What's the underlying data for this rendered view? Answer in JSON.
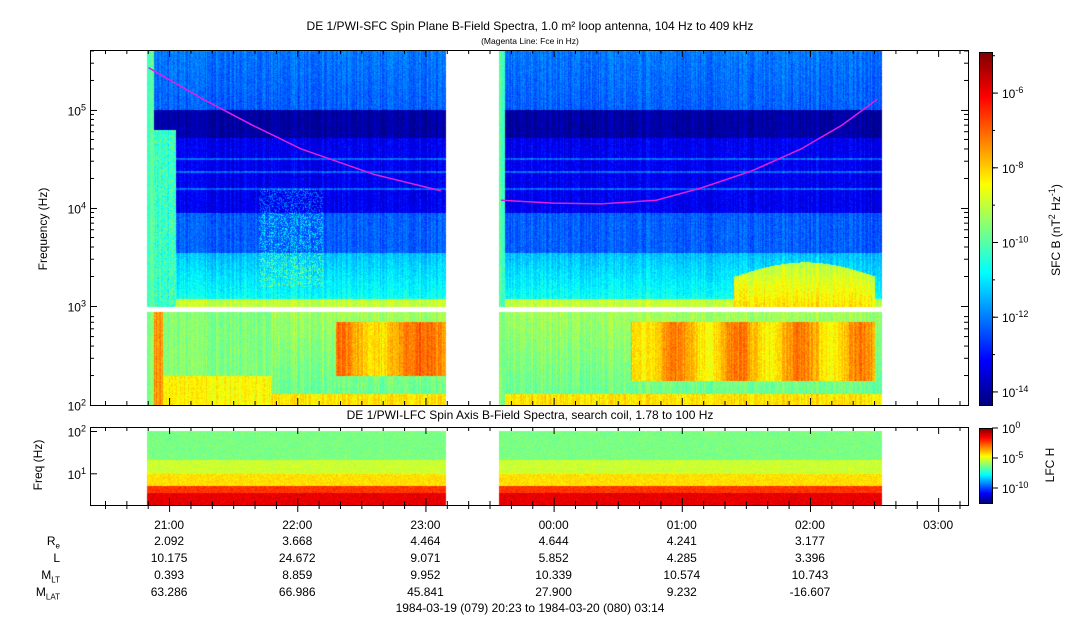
{
  "chart_data": [
    {
      "type": "heatmap",
      "title": "DE 1/PWI-SFC  Spin Plane B-Field Spectra, 1.0 m² loop antenna, 104 Hz to 409 kHz",
      "subtitle": "(Magenta Line: Fce in Hz)",
      "ylabel": "Frequency (Hz)",
      "yscale": "log",
      "ylim": [
        100,
        409000
      ],
      "yticks": [
        {
          "base": "10",
          "exp": "5",
          "value": 100000
        },
        {
          "base": "10",
          "exp": "4",
          "value": 10000
        },
        {
          "base": "10",
          "exp": "3",
          "value": 1000
        },
        {
          "base": "10",
          "exp": "2",
          "value": 100
        }
      ],
      "xlim_hours_since_2000": [
        0.383,
        7.233
      ],
      "data_intervals_hours_since_2000": [
        [
          0.82,
          3.16
        ],
        [
          3.57,
          6.56
        ]
      ],
      "colorbar": {
        "label": "SFC B (nT² Hz⁻¹)",
        "label_main": "SFC B (nT",
        "label_sup1": "2",
        "label_mid": " Hz",
        "label_sup2": "-1",
        "label_end": ")",
        "range_log10": [
          -14.35,
          -4.9
        ],
        "ticks": [
          {
            "base": "10",
            "exp": "-6",
            "value": -6
          },
          {
            "base": "10",
            "exp": "-8",
            "value": -8
          },
          {
            "base": "10",
            "exp": "-10",
            "value": -10
          },
          {
            "base": "10",
            "exp": "-12",
            "value": -12
          },
          {
            "base": "10",
            "exp": "-14",
            "value": -14
          }
        ]
      },
      "fce_line": {
        "color": "#e020e0",
        "segments": [
          [
            [
              0.84,
              270000
            ],
            [
              1.26,
              130000
            ],
            [
              1.65,
              70000
            ],
            [
              2.03,
              40000
            ],
            [
              2.6,
              22000
            ],
            [
              3.12,
              15000
            ]
          ],
          [
            [
              3.59,
              12000
            ],
            [
              4.0,
              11200
            ],
            [
              4.37,
              11000
            ],
            [
              4.8,
              12000
            ],
            [
              5.15,
              16000
            ],
            [
              5.55,
              24000
            ],
            [
              5.93,
              40000
            ],
            [
              6.25,
              70000
            ],
            [
              6.53,
              130000
            ]
          ]
        ]
      }
    },
    {
      "type": "heatmap",
      "title": "DE 1/PWI-LFC  Spin Axis B-Field Spectra, search coil, 1.78 to 100 Hz",
      "ylabel": "Freq (Hz)",
      "yscale": "log",
      "ylim": [
        1.78,
        100
      ],
      "yticks": [
        {
          "base": "10",
          "exp": "2",
          "value": 100
        },
        {
          "base": "10",
          "exp": "1",
          "value": 10
        }
      ],
      "colorbar": {
        "label": "LFC H",
        "range_log10": [
          -12.5,
          0
        ],
        "ticks": [
          {
            "base": "10",
            "exp": "0",
            "value": 0
          },
          {
            "base": "10",
            "exp": "-5",
            "value": -5
          },
          {
            "base": "10",
            "exp": "-10",
            "value": -10
          }
        ]
      }
    }
  ],
  "xaxis": {
    "ticks": [
      {
        "label": "21:00",
        "hour": 1
      },
      {
        "label": "22:00",
        "hour": 2
      },
      {
        "label": "23:00",
        "hour": 3
      },
      {
        "label": "00:00",
        "hour": 4
      },
      {
        "label": "01:00",
        "hour": 5
      },
      {
        "label": "02:00",
        "hour": 6
      },
      {
        "label": "03:00",
        "hour": 7
      }
    ]
  },
  "ephemeris": {
    "rows": [
      {
        "name": "R",
        "sub": "e",
        "values": [
          "2.092",
          "3.668",
          "4.464",
          "4.644",
          "4.241",
          "3.177"
        ]
      },
      {
        "name": "L",
        "sub": "",
        "values": [
          "10.175",
          "24.672",
          "9.071",
          "5.852",
          "4.285",
          "3.396"
        ]
      },
      {
        "name": "M",
        "sub": "LT",
        "values": [
          "0.393",
          "8.859",
          "9.952",
          "10.339",
          "10.574",
          "10.743"
        ]
      },
      {
        "name": "M",
        "sub": "LAT",
        "values": [
          "63.286",
          "66.986",
          "45.841",
          "27.900",
          "9.232",
          "-16.607"
        ]
      }
    ]
  },
  "time_range": "1984-03-19 (079) 20:23 to 1984-03-20 (080) 03:14"
}
